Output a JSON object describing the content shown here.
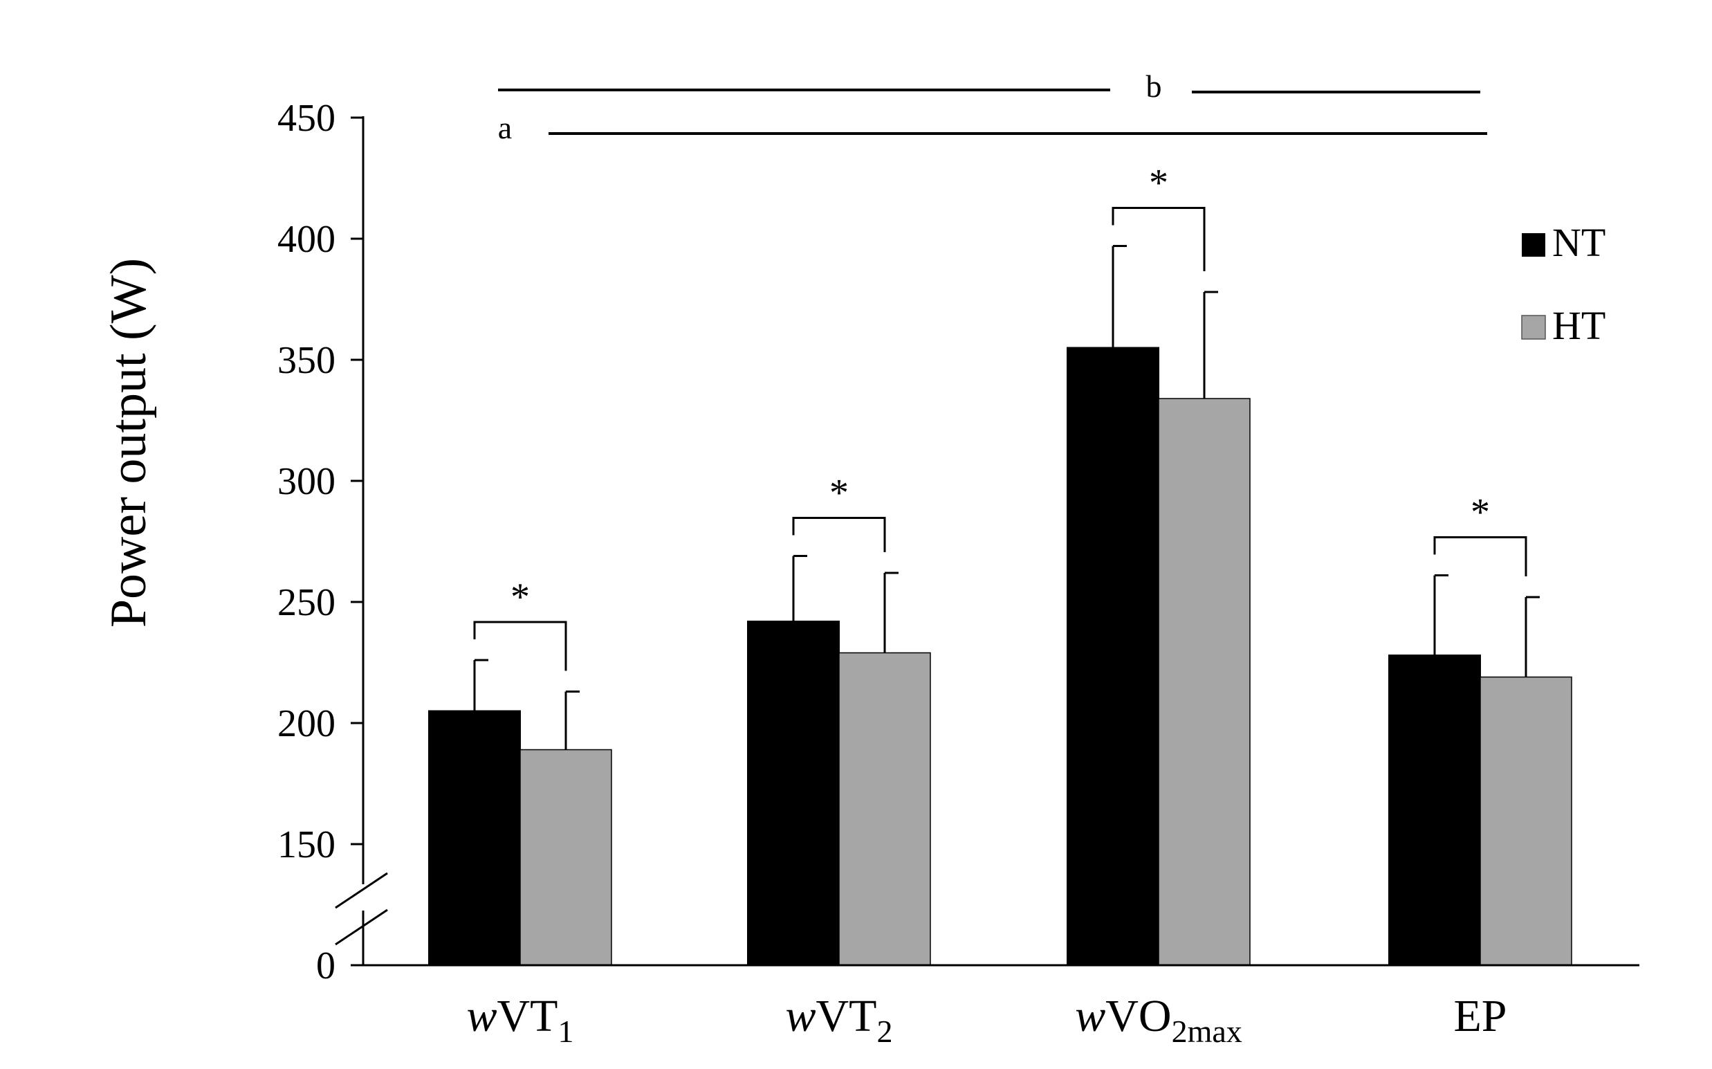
{
  "chart_data": {
    "type": "bar",
    "title": "",
    "xlabel": "",
    "ylabel": "Power output (W)",
    "ylim": [
      0,
      450
    ],
    "axis_break": {
      "below": 150,
      "broken_to": 0
    },
    "y_ticks": [
      {
        "value": 450,
        "label": "450"
      },
      {
        "value": 400,
        "label": "400"
      },
      {
        "value": 350,
        "label": "350"
      },
      {
        "value": 300,
        "label": "300"
      },
      {
        "value": 250,
        "label": "250"
      },
      {
        "value": 200,
        "label": "200"
      },
      {
        "value": 150,
        "label": "150"
      },
      {
        "value": 0,
        "label": "0"
      }
    ],
    "categories": [
      {
        "prefix": "w",
        "main": "VT",
        "sub": "1"
      },
      {
        "prefix": "w",
        "main": "VT",
        "sub": "2"
      },
      {
        "prefix": "w",
        "main": "VO",
        "sub": "2max"
      },
      {
        "prefix": "",
        "main": "EP",
        "sub": ""
      }
    ],
    "series": [
      {
        "name": "NT",
        "color": "#000000",
        "values": [
          205,
          242,
          355,
          228
        ],
        "errors": [
          21,
          27,
          42,
          33
        ]
      },
      {
        "name": "HT",
        "color": "#a6a6a6",
        "values": [
          189,
          229,
          334,
          219
        ],
        "errors": [
          24,
          33,
          44,
          33
        ]
      }
    ],
    "significance": {
      "pairwise_marker": "*",
      "pairwise_categories": [
        0,
        1,
        2,
        3
      ],
      "lines": [
        {
          "label": "a",
          "from_category": 0,
          "to_category": 3
        },
        {
          "label": "b",
          "from_category": 0,
          "to_category": 3
        }
      ]
    },
    "legend": {
      "position": "top-right"
    }
  }
}
